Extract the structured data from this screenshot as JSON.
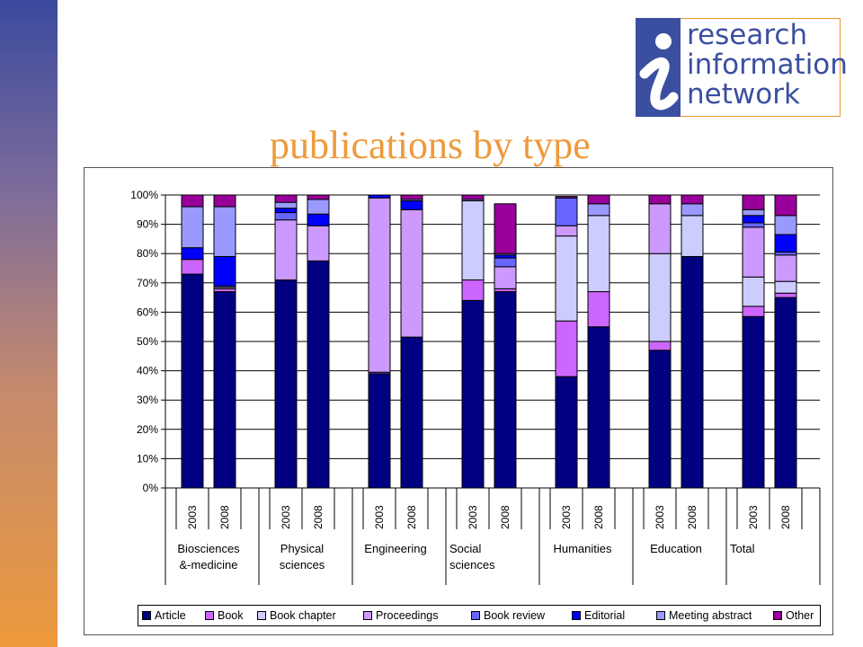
{
  "logo": {
    "lines": [
      "research",
      "information",
      "network"
    ],
    "colors": {
      "blue": "#3b4fa0",
      "orange": "#e8952e"
    }
  },
  "slide_title": "publications by type",
  "chart_data": {
    "type": "bar",
    "stacked": true,
    "percent": true,
    "title": "",
    "xlabel": "",
    "ylabel": "",
    "ylim": [
      0,
      100
    ],
    "yticks": [
      "0%",
      "10%",
      "20%",
      "30%",
      "40%",
      "50%",
      "60%",
      "70%",
      "80%",
      "90%",
      "100%"
    ],
    "gridlines": true,
    "legend_position": "bottom",
    "groups": [
      {
        "name": [
          "Biosciences",
          "&-medicine"
        ],
        "years": [
          "2003",
          "2008"
        ]
      },
      {
        "name": [
          "Physical",
          "sciences"
        ],
        "years": [
          "2003",
          "2008"
        ]
      },
      {
        "name": [
          "Engineering"
        ],
        "years": [
          "2003",
          "2008"
        ]
      },
      {
        "name": [
          "Social",
          "sciences"
        ],
        "years": [
          "2003",
          "2008"
        ]
      },
      {
        "name": [
          "Humanities"
        ],
        "years": [
          "2003",
          "2008"
        ]
      },
      {
        "name": [
          "Education"
        ],
        "years": [
          "2003",
          "2008"
        ]
      },
      {
        "name": [
          "Total"
        ],
        "years": [
          "2003",
          "2008"
        ]
      }
    ],
    "series": [
      {
        "name": "Article",
        "color": "#000080",
        "values": [
          73,
          67,
          71,
          77.5,
          39,
          51.5,
          64,
          67,
          38,
          55,
          47,
          79,
          58.5,
          65
        ]
      },
      {
        "name": "Book",
        "color": "#cc66ff",
        "values": [
          5,
          1,
          0,
          0,
          0.5,
          0,
          7,
          1,
          19,
          12,
          3,
          0,
          3.5,
          1.5
        ]
      },
      {
        "name": "Book chapter",
        "color": "#ccccff",
        "values": [
          0,
          0.5,
          0,
          0,
          0,
          0,
          27,
          0,
          29,
          26,
          30,
          14,
          10,
          4
        ]
      },
      {
        "name": "Proceedings",
        "color": "#cc99ff",
        "values": [
          0,
          0,
          20.5,
          12,
          59.5,
          43.5,
          0,
          7.5,
          3.5,
          0,
          17,
          0,
          17,
          9
        ]
      },
      {
        "name": "Book review",
        "color": "#6666ff",
        "values": [
          0,
          0.5,
          2.5,
          0,
          0,
          0,
          0,
          3,
          9.5,
          0,
          0,
          0,
          1.5,
          1
        ]
      },
      {
        "name": "Editorial",
        "color": "#0000ff",
        "values": [
          4,
          10,
          1.5,
          4,
          1,
          3,
          0,
          1,
          0,
          0,
          0,
          0,
          2.5,
          6
        ]
      },
      {
        "name": "Meeting abstract",
        "color": "#9999ff",
        "values": [
          14,
          17,
          2,
          5,
          0,
          0.5,
          0.5,
          0.5,
          0,
          4,
          0,
          4,
          2,
          6.5
        ]
      },
      {
        "name": "Other",
        "color": "#990099",
        "values": [
          4,
          4,
          2.5,
          1.5,
          0,
          1.5,
          1.5,
          17,
          0.5,
          3,
          3,
          3,
          5,
          7
        ]
      }
    ]
  }
}
